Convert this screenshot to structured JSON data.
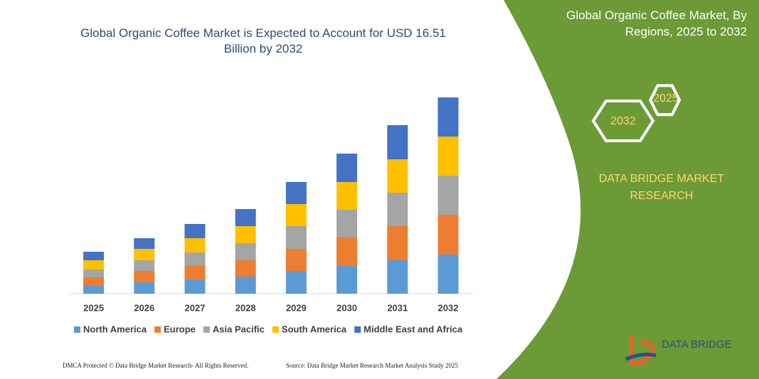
{
  "chart_data": {
    "type": "stacked-bar",
    "title": "Global Organic Coffee Market is Expected to Account for USD 16.51 Billion by 2032",
    "categories": [
      "2025",
      "2026",
      "2027",
      "2028",
      "2029",
      "2030",
      "2031",
      "2032"
    ],
    "series": [
      {
        "name": "North America",
        "color": "#5b9bd5",
        "values": [
          11,
          16,
          20,
          24,
          32,
          39,
          47,
          55
        ]
      },
      {
        "name": "Europe",
        "color": "#ed7d31",
        "values": [
          12,
          16,
          19,
          23,
          31,
          40,
          48,
          56
        ]
      },
      {
        "name": "Asia Pacific",
        "color": "#a5a5a5",
        "values": [
          11,
          15,
          19,
          24,
          32,
          39,
          47,
          55
        ]
      },
      {
        "name": "South America",
        "color": "#ffc000",
        "values": [
          13,
          16,
          20,
          24,
          31,
          39,
          47,
          55
        ]
      },
      {
        "name": "Middle East and Africa",
        "color": "#4472c4",
        "values": [
          12,
          15,
          20,
          24,
          31,
          40,
          48,
          55
        ]
      }
    ]
  },
  "panel": {
    "title": "Global Organic Coffee Market, By Regions, 2025 to 2032",
    "hex_start": "2025",
    "hex_end": "2032",
    "brand": "DATA BRIDGE MARKET RESEARCH"
  },
  "footer": {
    "left": "DMCA Protected © Data Bridge Market Research- All Rights Reserved.",
    "right": "Source: Data Bridge Market Research Market Analysis Study 2025"
  },
  "logo": {
    "text": "DATA BRIDGE"
  }
}
